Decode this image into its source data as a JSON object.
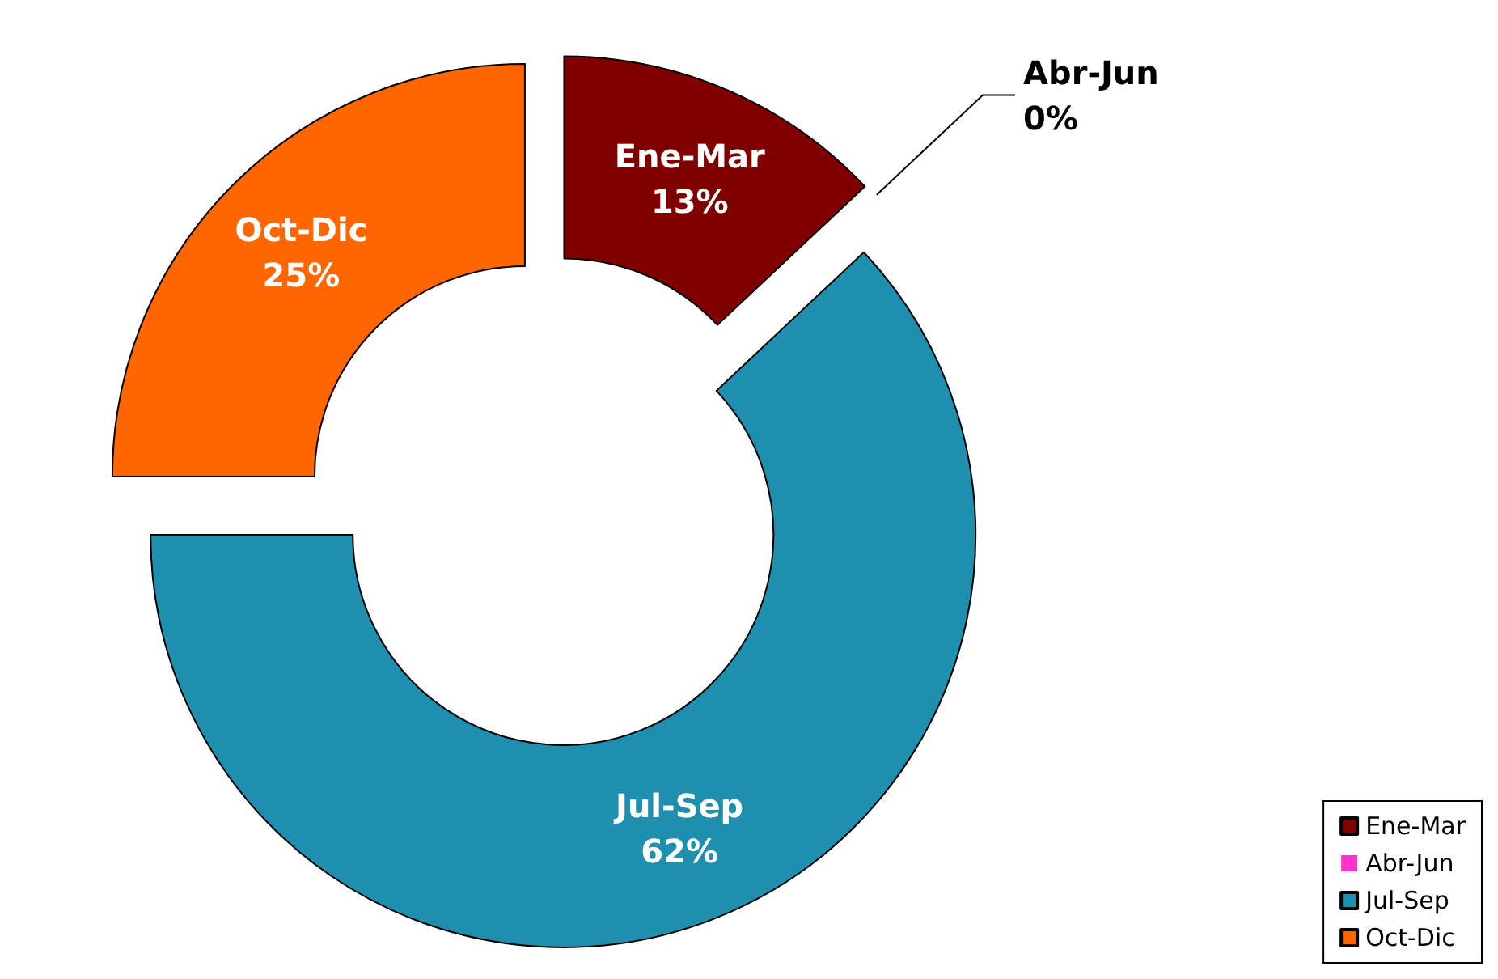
{
  "chart_data": {
    "type": "donut",
    "categories": [
      "Ene-Mar",
      "Abr-Jun",
      "Jul-Sep",
      "Oct-Dic"
    ],
    "values": [
      13,
      0,
      62,
      25
    ],
    "value_labels": [
      "13%",
      "0%",
      "62%",
      "25%"
    ],
    "colors": [
      "#800000",
      "#ff33cc",
      "#1f8fb0",
      "#ff6600"
    ],
    "legend": "bottom right"
  }
}
